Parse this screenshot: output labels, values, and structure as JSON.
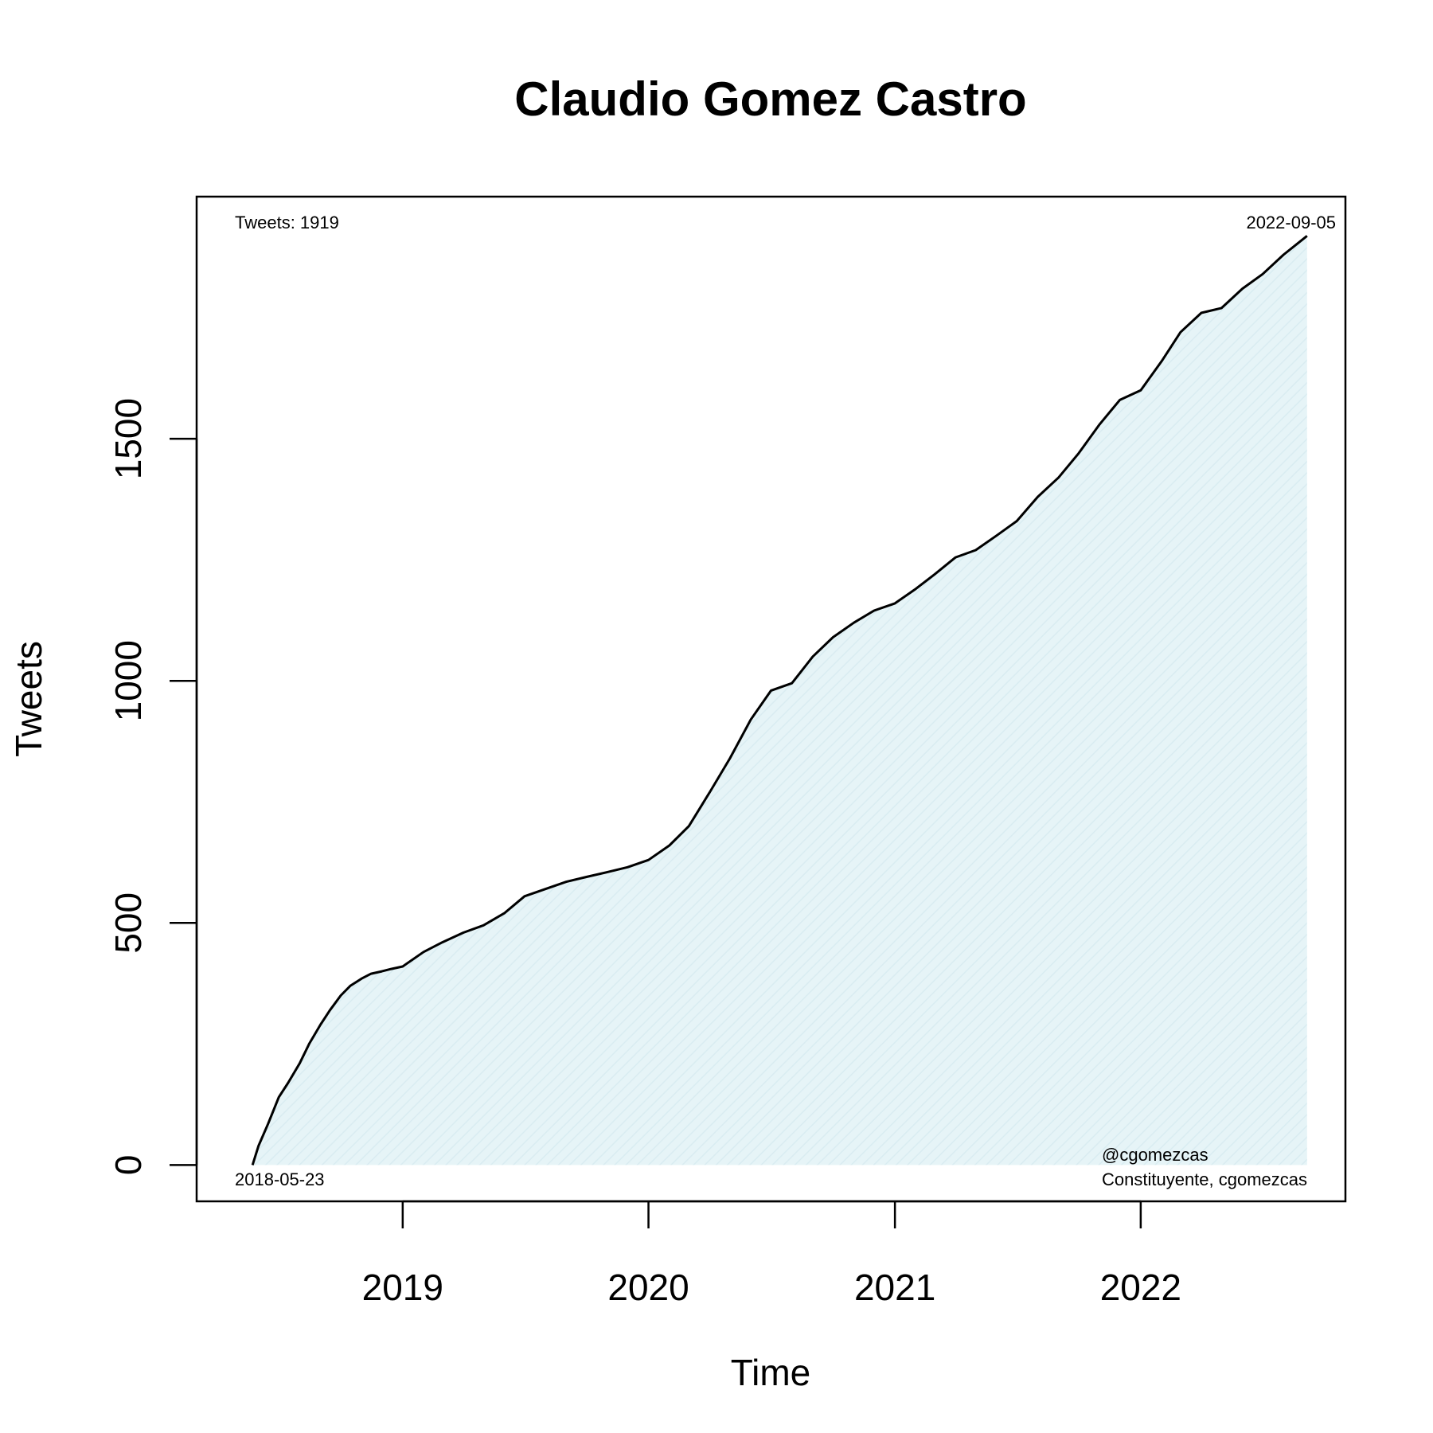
{
  "chart_data": {
    "type": "area",
    "title": "Claudio Gomez Castro",
    "xlabel": "Time",
    "ylabel": "Tweets",
    "x_axis": "date",
    "xlim": [
      "2018-03-01",
      "2022-11-01"
    ],
    "ylim": [
      -75,
      2000
    ],
    "x_ticks": [
      {
        "date": "2019-01-01",
        "label": "2019"
      },
      {
        "date": "2020-01-01",
        "label": "2020"
      },
      {
        "date": "2021-01-01",
        "label": "2021"
      },
      {
        "date": "2022-01-01",
        "label": "2022"
      }
    ],
    "y_ticks": [
      0,
      500,
      1000,
      1500
    ],
    "grid": false,
    "fill_color": "#e6f4f7",
    "line_color": "#000000",
    "series": [
      {
        "x": [
          "2018-05-23",
          "2018-06-01",
          "2018-06-15",
          "2018-07-01",
          "2018-07-15",
          "2018-08-01",
          "2018-08-15",
          "2018-09-01",
          "2018-09-15",
          "2018-10-01",
          "2018-10-15",
          "2018-11-01",
          "2018-11-15",
          "2018-12-01",
          "2018-12-15",
          "2019-01-01",
          "2019-02-01",
          "2019-03-01",
          "2019-04-01",
          "2019-05-01",
          "2019-06-01",
          "2019-07-01",
          "2019-08-01",
          "2019-09-01",
          "2019-10-01",
          "2019-11-01",
          "2019-12-01",
          "2020-01-01",
          "2020-02-01",
          "2020-03-01",
          "2020-04-01",
          "2020-05-01",
          "2020-06-01",
          "2020-07-01",
          "2020-08-01",
          "2020-09-01",
          "2020-10-01",
          "2020-11-01",
          "2020-12-01",
          "2021-01-01",
          "2021-02-01",
          "2021-03-01",
          "2021-04-01",
          "2021-05-01",
          "2021-06-01",
          "2021-07-01",
          "2021-08-01",
          "2021-09-01",
          "2021-10-01",
          "2021-11-01",
          "2021-12-01",
          "2022-01-01",
          "2022-02-01",
          "2022-03-01",
          "2022-04-01",
          "2022-05-01",
          "2022-06-01",
          "2022-07-01",
          "2022-08-01",
          "2022-09-05"
        ],
        "y": [
          0,
          40,
          85,
          140,
          170,
          210,
          250,
          290,
          320,
          350,
          370,
          385,
          395,
          400,
          405,
          410,
          440,
          460,
          480,
          495,
          520,
          555,
          570,
          585,
          595,
          605,
          615,
          630,
          660,
          700,
          770,
          840,
          920,
          980,
          995,
          1050,
          1090,
          1120,
          1145,
          1160,
          1190,
          1220,
          1255,
          1270,
          1300,
          1330,
          1380,
          1420,
          1470,
          1530,
          1580,
          1600,
          1660,
          1720,
          1760,
          1770,
          1810,
          1840,
          1880,
          1919
        ]
      }
    ]
  },
  "annotations": {
    "tweets_count": "Tweets: 1919",
    "end_date": "2022-09-05",
    "start_date": "2018-05-23",
    "handle": "@cgomezcas",
    "description": "Constituyente, cgomezcas"
  }
}
